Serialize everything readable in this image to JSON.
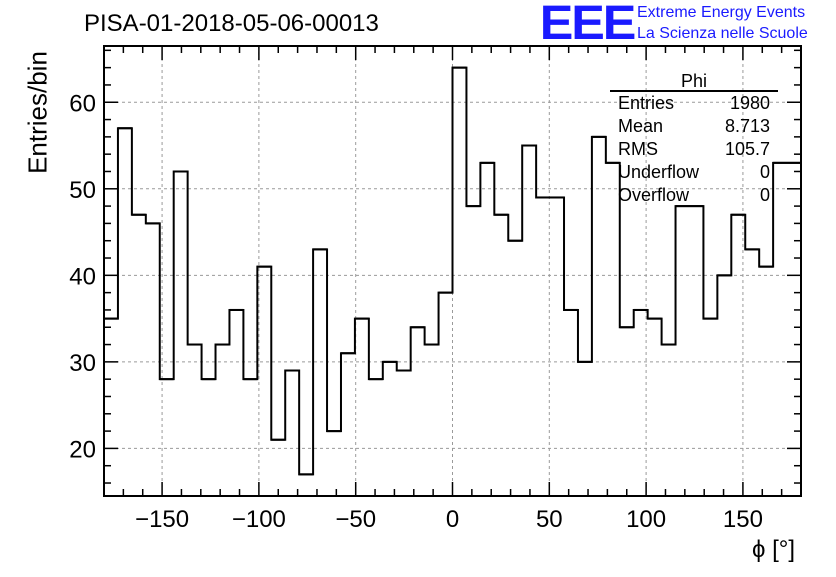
{
  "header": {
    "title": "PISA-01-2018-05-06-00013",
    "logo_letters": "EEE",
    "logo_line1": "Extreme Energy Events",
    "logo_line2": "La Scienza nelle Scuole",
    "logo_color": "#1a1aff"
  },
  "stats_box": {
    "title": "Phi",
    "rows": [
      {
        "key": "Entries",
        "value": "1980"
      },
      {
        "key": "Mean",
        "value": "8.713"
      },
      {
        "key": "RMS",
        "value": "105.7"
      },
      {
        "key": "Underflow",
        "value": "0"
      },
      {
        "key": "Overflow",
        "value": "0"
      }
    ]
  },
  "chart_data": {
    "type": "histogram",
    "ylabel": "Entries/bin",
    "xlabel": "ϕ [°]",
    "xlim": [
      -180,
      180
    ],
    "ylim": [
      14.5,
      66.5
    ],
    "x_ticks": [
      -150,
      -100,
      -50,
      0,
      50,
      100,
      150
    ],
    "x_tick_labels": [
      "−150",
      "−100",
      "−50",
      "0",
      "50",
      "100",
      "150"
    ],
    "y_ticks": [
      20,
      30,
      40,
      50,
      60
    ],
    "y_tick_labels": [
      "20",
      "30",
      "40",
      "50",
      "60"
    ],
    "grid": true,
    "bin_edges_start": -180,
    "bin_width": 7.2,
    "values": [
      35,
      57,
      47,
      46,
      28,
      52,
      32,
      28,
      32,
      36,
      28,
      41,
      21,
      29,
      17,
      43,
      22,
      31,
      35,
      28,
      30,
      29,
      34,
      32,
      38,
      64,
      48,
      53,
      47,
      44,
      55,
      49,
      49,
      36,
      30,
      56,
      53,
      34,
      36,
      35,
      32,
      48,
      48,
      35,
      40,
      47,
      43,
      41,
      53,
      53
    ],
    "line_color": "#000000"
  }
}
